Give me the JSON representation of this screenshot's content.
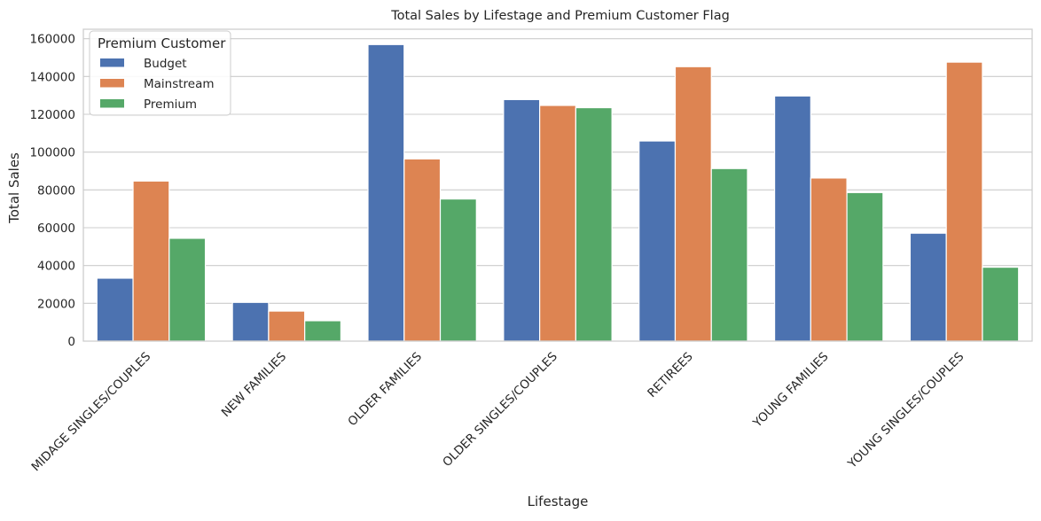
{
  "chart_data": {
    "type": "bar",
    "title": "Total Sales by Lifestage and Premium Customer Flag",
    "xlabel": "Lifestage",
    "ylabel": "Total Sales",
    "ylim": [
      0,
      165000
    ],
    "yticks": [
      0,
      20000,
      40000,
      60000,
      80000,
      100000,
      120000,
      140000,
      160000
    ],
    "grid": true,
    "legend": {
      "title": "Premium Customer",
      "placement": "top-left"
    },
    "categories": [
      "MIDAGE SINGLES/COUPLES",
      "NEW FAMILIES",
      "OLDER FAMILIES",
      "OLDER SINGLES/COUPLES",
      "RETIREES",
      "YOUNG FAMILIES",
      "YOUNG SINGLES/COUPLES"
    ],
    "series": [
      {
        "name": "Budget",
        "color": "#4c72b0",
        "values": [
          33300,
          20500,
          156900,
          127800,
          105900,
          129700,
          57100
        ]
      },
      {
        "name": "Mainstream",
        "color": "#dd8452",
        "values": [
          84700,
          15900,
          96400,
          124700,
          145200,
          86300,
          147600
        ]
      },
      {
        "name": "Premium",
        "color": "#55a868",
        "values": [
          54400,
          10800,
          75200,
          123500,
          91300,
          78600,
          39100
        ]
      }
    ]
  }
}
